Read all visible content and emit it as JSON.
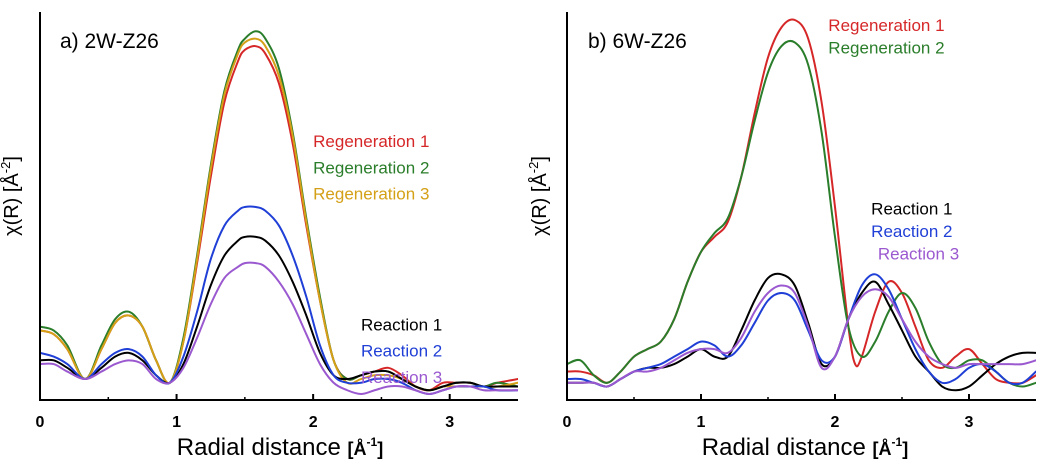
{
  "chart_data": [
    {
      "type": "line",
      "title": "a) 2W-Z26",
      "xlabel": "Radial distance",
      "xunit_base": "[Å",
      "xunit_exp": "-1",
      "xunit_close": "]",
      "ylabel": "χ(R) [Å",
      "ylabel_exp": "-2",
      "ylabel_close": "]",
      "xlim": [
        0,
        3.5
      ],
      "ylim": [
        0,
        100
      ],
      "xticks": [
        "0",
        "1",
        "2",
        "3"
      ],
      "xtick_values": [
        0,
        1,
        2,
        3
      ],
      "grid": false,
      "series": [
        {
          "name": "Regeneration 1",
          "color": "#d62728",
          "x": [
            0,
            0.1,
            0.2,
            0.33,
            0.45,
            0.55,
            0.65,
            0.75,
            0.85,
            0.95,
            1.05,
            1.15,
            1.25,
            1.35,
            1.45,
            1.5,
            1.58,
            1.65,
            1.75,
            1.85,
            1.95,
            2.05,
            2.15,
            2.25,
            2.35,
            2.45,
            2.55,
            2.65,
            2.75,
            2.85,
            2.95,
            3.05,
            3.15,
            3.25,
            3.35,
            3.5
          ],
          "y": [
            17,
            16,
            12,
            4,
            12,
            19,
            21,
            18,
            9,
            3,
            14,
            35,
            58,
            78,
            89,
            92,
            93,
            91,
            83,
            67,
            45,
            25,
            9,
            4,
            5,
            6,
            7,
            5,
            2,
            1,
            3,
            3,
            3,
            2,
            3,
            4
          ]
        },
        {
          "name": "Regeneration 2",
          "color": "#2a7d2a",
          "x": [
            0,
            0.1,
            0.2,
            0.33,
            0.45,
            0.55,
            0.65,
            0.75,
            0.85,
            0.95,
            1.05,
            1.15,
            1.25,
            1.35,
            1.45,
            1.5,
            1.58,
            1.65,
            1.75,
            1.85,
            1.95,
            2.05,
            2.15,
            2.25,
            2.35,
            2.45,
            2.55,
            2.65,
            2.75,
            2.85,
            2.95,
            3.05,
            3.15,
            3.25,
            3.35,
            3.5
          ],
          "y": [
            18,
            17,
            13,
            4,
            13,
            20,
            22,
            18,
            9,
            3,
            15,
            37,
            61,
            81,
            92,
            95,
            97,
            95,
            87,
            70,
            47,
            26,
            9,
            4,
            5,
            6,
            6,
            4,
            2,
            1,
            2,
            3,
            3,
            2,
            3,
            2
          ]
        },
        {
          "name": "Regeneration 3",
          "color": "#d4a017",
          "x": [
            0,
            0.1,
            0.2,
            0.33,
            0.45,
            0.55,
            0.65,
            0.75,
            0.85,
            0.95,
            1.05,
            1.15,
            1.25,
            1.35,
            1.45,
            1.5,
            1.58,
            1.65,
            1.75,
            1.85,
            1.95,
            2.05,
            2.15,
            2.25,
            2.35,
            2.45,
            2.55,
            2.65,
            2.75,
            2.85,
            2.95,
            3.05,
            3.15,
            3.25,
            3.35,
            3.5
          ],
          "y": [
            17,
            16,
            12,
            4,
            12,
            19,
            21,
            18,
            9,
            3,
            14,
            36,
            60,
            80,
            91,
            94,
            95,
            93,
            85,
            69,
            46,
            25,
            9,
            3,
            4,
            5,
            5,
            4,
            2,
            1,
            2,
            2,
            2,
            2,
            2,
            3
          ]
        },
        {
          "name": "Reaction 1",
          "color": "#000000",
          "x": [
            0,
            0.1,
            0.2,
            0.33,
            0.45,
            0.55,
            0.65,
            0.75,
            0.85,
            0.95,
            1.05,
            1.15,
            1.25,
            1.35,
            1.45,
            1.5,
            1.58,
            1.65,
            1.75,
            1.85,
            1.95,
            2.05,
            2.15,
            2.25,
            2.35,
            2.45,
            2.55,
            2.65,
            2.75,
            2.85,
            2.95,
            3.05,
            3.15,
            3.25,
            3.35,
            3.5
          ],
          "y": [
            9,
            9,
            7,
            4,
            7,
            10,
            11,
            9,
            5,
            3,
            8,
            18,
            29,
            37,
            41,
            42,
            42,
            41,
            37,
            30,
            21,
            11,
            5,
            4,
            5,
            6,
            6,
            4,
            2,
            1,
            2,
            3,
            3,
            2,
            2,
            2
          ]
        },
        {
          "name": "Reaction 2",
          "color": "#1f3fd6",
          "x": [
            0,
            0.1,
            0.2,
            0.33,
            0.45,
            0.55,
            0.65,
            0.75,
            0.85,
            0.95,
            1.05,
            1.15,
            1.25,
            1.35,
            1.45,
            1.5,
            1.58,
            1.65,
            1.75,
            1.85,
            1.95,
            2.05,
            2.15,
            2.25,
            2.35,
            2.45,
            2.55,
            2.65,
            2.75,
            2.85,
            2.95,
            3.05,
            3.15,
            3.25,
            3.35,
            3.5
          ],
          "y": [
            11,
            10,
            8,
            4,
            8,
            11,
            12,
            10,
            5,
            3,
            10,
            22,
            36,
            45,
            49,
            50,
            50,
            49,
            45,
            37,
            26,
            13,
            5,
            3,
            3,
            4,
            4,
            3,
            1,
            0,
            1,
            2,
            2,
            2,
            1,
            1
          ]
        },
        {
          "name": "Reaction 3",
          "color": "#9b59d0",
          "x": [
            0,
            0.1,
            0.2,
            0.33,
            0.45,
            0.55,
            0.65,
            0.75,
            0.85,
            0.95,
            1.05,
            1.15,
            1.25,
            1.35,
            1.45,
            1.5,
            1.58,
            1.65,
            1.75,
            1.85,
            1.95,
            2.05,
            2.15,
            2.25,
            2.35,
            2.45,
            2.55,
            2.65,
            2.75,
            2.85,
            2.95,
            3.05,
            3.15,
            3.25,
            3.35,
            3.5
          ],
          "y": [
            8,
            8,
            6,
            4,
            6,
            8,
            9,
            8,
            4,
            3,
            7,
            15,
            24,
            31,
            34,
            35,
            35,
            34,
            30,
            24,
            16,
            8,
            3,
            1,
            0,
            1,
            2,
            2,
            1,
            0,
            1,
            2,
            2,
            1,
            1,
            1
          ]
        }
      ],
      "labels": [
        {
          "text": "Regeneration 1",
          "color": "#d62728",
          "x": 2.0,
          "y": 66
        },
        {
          "text": "Regeneration 2",
          "color": "#2a7d2a",
          "x": 2.0,
          "y": 59
        },
        {
          "text": "Regeneration 3",
          "color": "#d4a017",
          "x": 2.0,
          "y": 52
        },
        {
          "text": "Reaction 1",
          "color": "#000000",
          "x": 2.35,
          "y": 17
        },
        {
          "text": "Reaction 2",
          "color": "#1f3fd6",
          "x": 2.35,
          "y": 10
        },
        {
          "text": "Reaction 3",
          "color": "#9b59d0",
          "x": 2.35,
          "y": 3
        }
      ]
    },
    {
      "type": "line",
      "title": "b) 6W-Z26",
      "xlabel": "Radial distance",
      "xunit_base": "[Å",
      "xunit_exp": "-1",
      "xunit_close": "]",
      "ylabel": "χ(R) [Å",
      "ylabel_exp": "-2",
      "ylabel_close": "]",
      "xlim": [
        0,
        3.5
      ],
      "ylim": [
        0,
        100
      ],
      "xticks": [
        "0",
        "1",
        "2",
        "3"
      ],
      "xtick_values": [
        0,
        1,
        2,
        3
      ],
      "grid": false,
      "series": [
        {
          "name": "Regeneration 1",
          "color": "#d62728",
          "x": [
            0,
            0.1,
            0.2,
            0.3,
            0.4,
            0.5,
            0.6,
            0.7,
            0.8,
            0.9,
            1.0,
            1.1,
            1.2,
            1.3,
            1.4,
            1.5,
            1.6,
            1.7,
            1.8,
            1.9,
            2.0,
            2.1,
            2.15,
            2.2,
            2.3,
            2.4,
            2.5,
            2.6,
            2.7,
            2.8,
            2.9,
            3.0,
            3.1,
            3.2,
            3.3,
            3.4,
            3.5
          ],
          "y": [
            6,
            6,
            5,
            3,
            6,
            10,
            12,
            14,
            20,
            30,
            38,
            42,
            46,
            58,
            75,
            90,
            98,
            100,
            95,
            78,
            50,
            18,
            8,
            10,
            22,
            30,
            27,
            18,
            9,
            7,
            10,
            12,
            8,
            4,
            3,
            3,
            5
          ]
        },
        {
          "name": "Regeneration 2",
          "color": "#2a7d2a",
          "x": [
            0,
            0.1,
            0.2,
            0.3,
            0.4,
            0.5,
            0.6,
            0.7,
            0.8,
            0.9,
            1.0,
            1.1,
            1.2,
            1.3,
            1.4,
            1.5,
            1.6,
            1.7,
            1.8,
            1.9,
            2.0,
            2.1,
            2.2,
            2.3,
            2.4,
            2.5,
            2.6,
            2.7,
            2.8,
            2.9,
            3.0,
            3.1,
            3.2,
            3.3,
            3.4,
            3.5
          ],
          "y": [
            8,
            9,
            5,
            3,
            6,
            10,
            12,
            14,
            20,
            30,
            38,
            43,
            47,
            58,
            73,
            86,
            93,
            94,
            88,
            70,
            42,
            18,
            10,
            14,
            22,
            27,
            23,
            14,
            8,
            7,
            9,
            9,
            6,
            3,
            2,
            3
          ]
        },
        {
          "name": "Reaction 1",
          "color": "#000000",
          "x": [
            0,
            0.1,
            0.2,
            0.3,
            0.4,
            0.5,
            0.6,
            0.7,
            0.8,
            0.9,
            1.0,
            1.1,
            1.2,
            1.3,
            1.4,
            1.5,
            1.6,
            1.7,
            1.8,
            1.9,
            2.0,
            2.1,
            2.2,
            2.3,
            2.4,
            2.5,
            2.6,
            2.7,
            2.8,
            2.9,
            3.0,
            3.1,
            3.2,
            3.3,
            3.4,
            3.5
          ],
          "y": [
            3,
            3,
            3,
            2,
            4,
            6,
            7,
            7,
            8,
            10,
            12,
            10,
            10,
            17,
            25,
            31,
            32,
            29,
            19,
            8,
            10,
            20,
            27,
            30,
            24,
            17,
            10,
            6,
            2,
            1,
            2,
            5,
            8,
            10,
            11,
            11
          ]
        },
        {
          "name": "Reaction 2",
          "color": "#1f3fd6",
          "x": [
            0,
            0.1,
            0.2,
            0.3,
            0.4,
            0.5,
            0.6,
            0.7,
            0.8,
            0.9,
            1.0,
            1.1,
            1.2,
            1.3,
            1.4,
            1.5,
            1.6,
            1.7,
            1.8,
            1.9,
            2.0,
            2.1,
            2.2,
            2.3,
            2.4,
            2.5,
            2.6,
            2.7,
            2.8,
            2.9,
            3.0,
            3.1,
            3.2,
            3.3,
            3.4,
            3.5
          ],
          "y": [
            4,
            4,
            3,
            2,
            4,
            6,
            7,
            8,
            10,
            12,
            14,
            13,
            10,
            13,
            19,
            25,
            27,
            25,
            17,
            9,
            10,
            20,
            29,
            32,
            28,
            20,
            12,
            6,
            3,
            4,
            7,
            8,
            6,
            3,
            3,
            6
          ]
        },
        {
          "name": "Reaction 3",
          "color": "#9b59d0",
          "x": [
            0,
            0.1,
            0.2,
            0.3,
            0.4,
            0.5,
            0.6,
            0.7,
            0.8,
            0.9,
            1.0,
            1.1,
            1.2,
            1.3,
            1.4,
            1.5,
            1.6,
            1.7,
            1.8,
            1.9,
            2.0,
            2.1,
            2.2,
            2.3,
            2.4,
            2.5,
            2.6,
            2.7,
            2.8,
            2.9,
            3.0,
            3.1,
            3.2,
            3.3,
            3.4,
            3.5
          ],
          "y": [
            3,
            3,
            3,
            2,
            4,
            6,
            6,
            7,
            9,
            11,
            12,
            12,
            11,
            15,
            22,
            27,
            29,
            27,
            18,
            7,
            10,
            20,
            26,
            28,
            26,
            20,
            14,
            10,
            8,
            7,
            8,
            8,
            8,
            8,
            8,
            9
          ]
        }
      ],
      "labels": [
        {
          "text": "Regeneration 1",
          "color": "#d62728",
          "x": 1.95,
          "y": 97
        },
        {
          "text": "Regeneration 2",
          "color": "#2a7d2a",
          "x": 1.95,
          "y": 91
        },
        {
          "text": "Reaction 1",
          "color": "#000000",
          "x": 2.27,
          "y": 48
        },
        {
          "text": "Reaction 2",
          "color": "#1f3fd6",
          "x": 2.27,
          "y": 42
        },
        {
          "text": "Reaction 3",
          "color": "#9b59d0",
          "x": 2.32,
          "y": 36
        }
      ]
    }
  ]
}
